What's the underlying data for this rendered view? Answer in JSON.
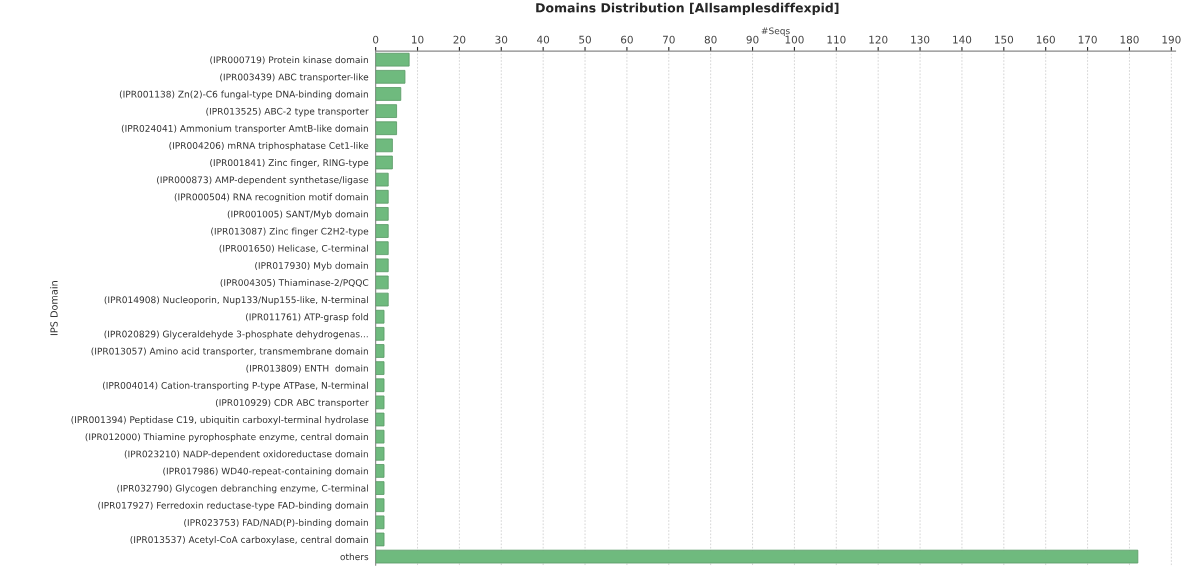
{
  "chart_data": {
    "type": "bar",
    "orientation": "horizontal",
    "title": "Domains Distribution [Allsamplesdiffexpid]",
    "xlabel": "#Seqs",
    "ylabel": "IPS Domain",
    "categories": [
      "(IPR000719) Protein kinase domain",
      "(IPR003439) ABC transporter-like",
      "(IPR001138) Zn(2)-C6 fungal-type DNA-binding domain",
      "(IPR013525) ABC-2 type transporter",
      "(IPR024041) Ammonium transporter AmtB-like domain",
      "(IPR004206) mRNA triphosphatase Cet1-like",
      "(IPR001841) Zinc finger, RING-type",
      "(IPR000873) AMP-dependent synthetase/ligase",
      "(IPR000504) RNA recognition motif domain",
      "(IPR001005) SANT/Myb domain",
      "(IPR013087) Zinc finger C2H2-type",
      "(IPR001650) Helicase, C-terminal",
      "(IPR017930) Myb domain",
      "(IPR004305) Thiaminase-2/PQQC",
      "(IPR014908) Nucleoporin, Nup133/Nup155-like, N-terminal",
      "(IPR011761) ATP-grasp fold",
      "(IPR020829) Glyceraldehyde 3-phosphate dehydrogenas...",
      "(IPR013057) Amino acid transporter, transmembrane domain",
      "(IPR013809) ENTH  domain",
      "(IPR004014) Cation-transporting P-type ATPase, N-terminal",
      "(IPR010929) CDR ABC transporter",
      "(IPR001394) Peptidase C19, ubiquitin carboxyl-terminal hydrolase",
      "(IPR012000) Thiamine pyrophosphate enzyme, central domain",
      "(IPR023210) NADP-dependent oxidoreductase domain",
      "(IPR017986) WD40-repeat-containing domain",
      "(IPR032790) Glycogen debranching enzyme, C-terminal",
      "(IPR017927) Ferredoxin reductase-type FAD-binding domain",
      "(IPR023753) FAD/NAD(P)-binding domain",
      "(IPR013537) Acetyl-CoA carboxylase, central domain",
      "others"
    ],
    "values": [
      8,
      7,
      6,
      5,
      5,
      4,
      4,
      3,
      3,
      3,
      3,
      3,
      3,
      3,
      3,
      2,
      2,
      2,
      2,
      2,
      2,
      2,
      2,
      2,
      2,
      2,
      2,
      2,
      2,
      182
    ],
    "color": "#6fba7e",
    "xlim": [
      0,
      191
    ],
    "xticks": [
      0,
      10,
      20,
      30,
      40,
      50,
      60,
      70,
      80,
      90,
      100,
      110,
      120,
      130,
      140,
      150,
      160,
      170,
      180,
      190
    ],
    "grid": "x",
    "legend": false
  }
}
